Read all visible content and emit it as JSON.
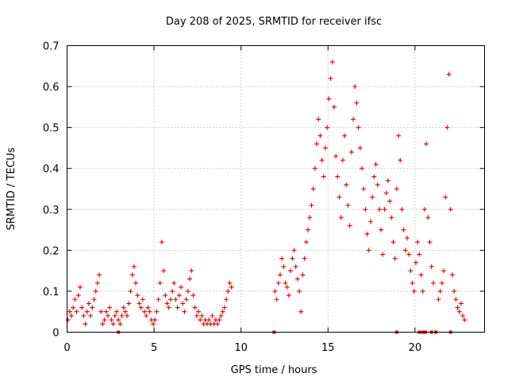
{
  "chart_data": {
    "type": "scatter",
    "title": "Day 208 of 2025, SRMTID for receiver ifsc",
    "xlabel": "GPS time / hours",
    "ylabel": "SRMTID / TECUs",
    "xlim": [
      0,
      24
    ],
    "ylim": [
      0,
      0.7
    ],
    "xticks": [
      0,
      5,
      10,
      15,
      20
    ],
    "xtick_labels": [
      "0",
      "5",
      "10",
      "15",
      "20"
    ],
    "yticks": [
      0,
      0.1,
      0.2,
      0.3,
      0.4,
      0.5,
      0.6,
      0.7
    ],
    "ytick_labels": [
      "0",
      "0.1",
      "0.2",
      "0.3",
      "0.4",
      "0.5",
      "0.6",
      "0.7"
    ],
    "grid": true,
    "marker": "+",
    "color": "#e00000",
    "series": [
      {
        "name": "SRMTID",
        "points": [
          [
            0.05,
            0.03
          ],
          [
            0.15,
            0.05
          ],
          [
            0.25,
            0.04
          ],
          [
            0.35,
            0.06
          ],
          [
            0.45,
            0.08
          ],
          [
            0.55,
            0.05
          ],
          [
            0.65,
            0.09
          ],
          [
            0.75,
            0.11
          ],
          [
            0.85,
            0.06
          ],
          [
            0.95,
            0.04
          ],
          [
            1.05,
            0.02
          ],
          [
            1.15,
            0.05
          ],
          [
            1.25,
            0.07
          ],
          [
            1.35,
            0.04
          ],
          [
            1.45,
            0.06
          ],
          [
            1.55,
            0.08
          ],
          [
            1.65,
            0.1
          ],
          [
            1.75,
            0.12
          ],
          [
            1.85,
            0.14
          ],
          [
            1.95,
            0.05
          ],
          [
            2.05,
            0.02
          ],
          [
            2.15,
            0.03
          ],
          [
            2.25,
            0.05
          ],
          [
            2.35,
            0.04
          ],
          [
            2.45,
            0.06
          ],
          [
            2.55,
            0.03
          ],
          [
            2.65,
            0.02
          ],
          [
            2.75,
            0.04
          ],
          [
            2.85,
            0.05
          ],
          [
            2.95,
            0.03
          ],
          [
            3.05,
            0.02
          ],
          [
            3.15,
            0.04
          ],
          [
            3.25,
            0.06
          ],
          [
            3.35,
            0.05
          ],
          [
            3.45,
            0.04
          ],
          [
            3.55,
            0.07
          ],
          [
            3.65,
            0.1
          ],
          [
            3.75,
            0.14
          ],
          [
            3.85,
            0.16
          ],
          [
            3.95,
            0.12
          ],
          [
            4.05,
            0.09
          ],
          [
            4.15,
            0.07
          ],
          [
            4.25,
            0.06
          ],
          [
            4.35,
            0.08
          ],
          [
            4.45,
            0.05
          ],
          [
            4.55,
            0.04
          ],
          [
            4.65,
            0.06
          ],
          [
            4.75,
            0.05
          ],
          [
            4.85,
            0.03
          ],
          [
            4.95,
            0.02
          ],
          [
            5.05,
            0.03
          ],
          [
            5.15,
            0.05
          ],
          [
            5.25,
            0.08
          ],
          [
            5.35,
            0.12
          ],
          [
            5.45,
            0.22
          ],
          [
            5.55,
            0.15
          ],
          [
            5.65,
            0.09
          ],
          [
            5.75,
            0.07
          ],
          [
            5.85,
            0.06
          ],
          [
            5.95,
            0.08
          ],
          [
            6.05,
            0.1
          ],
          [
            6.15,
            0.12
          ],
          [
            6.25,
            0.08
          ],
          [
            6.35,
            0.06
          ],
          [
            6.45,
            0.09
          ],
          [
            6.55,
            0.11
          ],
          [
            6.65,
            0.07
          ],
          [
            6.75,
            0.05
          ],
          [
            6.85,
            0.08
          ],
          [
            6.95,
            0.1
          ],
          [
            7.05,
            0.13
          ],
          [
            7.15,
            0.15
          ],
          [
            7.25,
            0.09
          ],
          [
            7.35,
            0.06
          ],
          [
            7.45,
            0.04
          ],
          [
            7.55,
            0.05
          ],
          [
            7.65,
            0.03
          ],
          [
            7.75,
            0.04
          ],
          [
            7.85,
            0.02
          ],
          [
            7.95,
            0.03
          ],
          [
            8.05,
            0.02
          ],
          [
            8.15,
            0.03
          ],
          [
            8.25,
            0.02
          ],
          [
            8.35,
            0.04
          ],
          [
            8.45,
            0.02
          ],
          [
            8.55,
            0.03
          ],
          [
            8.65,
            0.02
          ],
          [
            8.75,
            0.03
          ],
          [
            8.85,
            0.04
          ],
          [
            8.95,
            0.05
          ],
          [
            9.05,
            0.06
          ],
          [
            9.15,
            0.08
          ],
          [
            9.25,
            0.1
          ],
          [
            9.35,
            0.12
          ],
          [
            9.45,
            0.11
          ],
          [
            11.95,
            0.1
          ],
          [
            12.05,
            0.08
          ],
          [
            12.15,
            0.12
          ],
          [
            12.25,
            0.14
          ],
          [
            12.35,
            0.18
          ],
          [
            12.45,
            0.16
          ],
          [
            12.55,
            0.12
          ],
          [
            12.65,
            0.11
          ],
          [
            12.75,
            0.09
          ],
          [
            12.85,
            0.15
          ],
          [
            12.95,
            0.18
          ],
          [
            13.05,
            0.2
          ],
          [
            13.15,
            0.16
          ],
          [
            13.25,
            0.13
          ],
          [
            13.35,
            0.1
          ],
          [
            13.45,
            0.05
          ],
          [
            13.55,
            0.14
          ],
          [
            13.65,
            0.18
          ],
          [
            13.75,
            0.22
          ],
          [
            13.85,
            0.25
          ],
          [
            13.95,
            0.28
          ],
          [
            14.05,
            0.31
          ],
          [
            14.15,
            0.35
          ],
          [
            14.25,
            0.4
          ],
          [
            14.35,
            0.46
          ],
          [
            14.45,
            0.52
          ],
          [
            14.55,
            0.48
          ],
          [
            14.65,
            0.42
          ],
          [
            14.75,
            0.38
          ],
          [
            14.85,
            0.45
          ],
          [
            14.95,
            0.5
          ],
          [
            15.05,
            0.57
          ],
          [
            15.15,
            0.62
          ],
          [
            15.25,
            0.66
          ],
          [
            15.35,
            0.55
          ],
          [
            15.45,
            0.43
          ],
          [
            15.55,
            0.38
          ],
          [
            15.65,
            0.33
          ],
          [
            15.75,
            0.28
          ],
          [
            15.85,
            0.42
          ],
          [
            15.95,
            0.48
          ],
          [
            16.05,
            0.36
          ],
          [
            16.15,
            0.31
          ],
          [
            16.25,
            0.26
          ],
          [
            16.35,
            0.44
          ],
          [
            16.45,
            0.52
          ],
          [
            16.55,
            0.6
          ],
          [
            16.65,
            0.56
          ],
          [
            16.75,
            0.5
          ],
          [
            16.85,
            0.45
          ],
          [
            16.95,
            0.4
          ],
          [
            17.05,
            0.35
          ],
          [
            17.15,
            0.3
          ],
          [
            17.25,
            0.24
          ],
          [
            17.35,
            0.2
          ],
          [
            17.45,
            0.27
          ],
          [
            17.55,
            0.33
          ],
          [
            17.65,
            0.38
          ],
          [
            17.75,
            0.41
          ],
          [
            17.85,
            0.36
          ],
          [
            17.95,
            0.3
          ],
          [
            18.05,
            0.25
          ],
          [
            18.15,
            0.19
          ],
          [
            18.25,
            0.3
          ],
          [
            18.35,
            0.34
          ],
          [
            18.45,
            0.37
          ],
          [
            18.55,
            0.32
          ],
          [
            18.65,
            0.28
          ],
          [
            18.75,
            0.22
          ],
          [
            18.85,
            0.18
          ],
          [
            18.95,
            0.35
          ],
          [
            19.05,
            0.48
          ],
          [
            19.15,
            0.42
          ],
          [
            19.25,
            0.3
          ],
          [
            19.35,
            0.25
          ],
          [
            19.45,
            0.2
          ],
          [
            19.55,
            0.23
          ],
          [
            19.65,
            0.19
          ],
          [
            19.75,
            0.15
          ],
          [
            19.85,
            0.12
          ],
          [
            19.95,
            0.1
          ],
          [
            20.05,
            0.17
          ],
          [
            20.15,
            0.22
          ],
          [
            20.25,
            0.19
          ],
          [
            20.35,
            0.14
          ],
          [
            20.45,
            0.1
          ],
          [
            20.55,
            0.3
          ],
          [
            20.65,
            0.46
          ],
          [
            20.75,
            0.28
          ],
          [
            20.85,
            0.22
          ],
          [
            20.95,
            0.16
          ],
          [
            21.05,
            0.12
          ],
          [
            21.35,
            0.08
          ],
          [
            21.45,
            0.1
          ],
          [
            21.55,
            0.12
          ],
          [
            21.65,
            0.15
          ],
          [
            21.75,
            0.33
          ],
          [
            21.85,
            0.5
          ],
          [
            21.95,
            0.63
          ],
          [
            22.05,
            0.3
          ],
          [
            22.15,
            0.14
          ],
          [
            22.25,
            0.1
          ],
          [
            22.35,
            0.08
          ],
          [
            22.45,
            0.06
          ],
          [
            22.55,
            0.05
          ],
          [
            22.65,
            0.07
          ],
          [
            22.75,
            0.04
          ],
          [
            22.85,
            0.03
          ]
        ]
      }
    ],
    "zero_markers_x": [
      2.95,
      11.9,
      18.95,
      20.25,
      20.45,
      20.6,
      20.95,
      21.2,
      22.05
    ]
  }
}
